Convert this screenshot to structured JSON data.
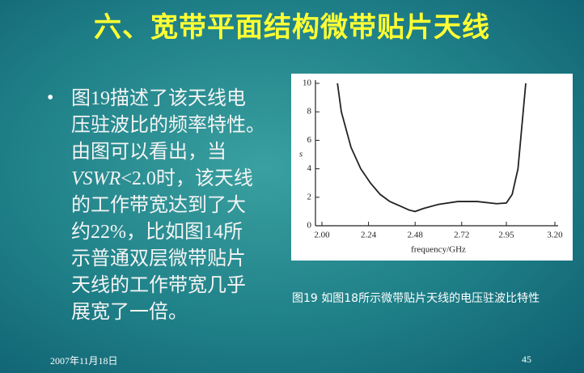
{
  "title": "六、宽带平面结构微带贴片天线",
  "bullet": {
    "lines": [
      "图19描述了该天线电",
      "压驻波比的频率特性。",
      "由图可以看出，当",
      {
        "em": "VSWR",
        "text": "<2.0时，该天线"
      },
      "的工作带宽达到了大",
      "约22%，比如图14所",
      "示普通双层微带贴片",
      "天线的工作带宽几乎",
      "展宽了一倍。"
    ]
  },
  "figure": {
    "caption": "图19 如图18所示微带贴片天线的电压驻波比特性",
    "chart": {
      "type": "line",
      "xlabel": "frequency/GHz",
      "ylabel": "s",
      "x": [
        2.08,
        2.1,
        2.15,
        2.2,
        2.25,
        2.3,
        2.35,
        2.4,
        2.45,
        2.48,
        2.52,
        2.6,
        2.7,
        2.8,
        2.9,
        2.95,
        2.98,
        3.01,
        3.03,
        3.05
      ],
      "values": [
        10,
        8,
        5.5,
        4,
        3,
        2.2,
        1.7,
        1.4,
        1.1,
        1,
        1.2,
        1.5,
        1.7,
        1.7,
        1.55,
        1.6,
        2.2,
        4,
        7,
        10
      ],
      "xlim": [
        2.0,
        3.2
      ],
      "ylim": [
        0,
        10
      ],
      "xticks": [
        {
          "value": 2,
          "label": "2.00"
        },
        2.24,
        2.48,
        2.72,
        2.95,
        {
          "value": 3.2,
          "label": "3.20"
        }
      ],
      "yticks": [
        0,
        2,
        4,
        6,
        8,
        10
      ],
      "color": "#222222"
    }
  },
  "footer": {
    "date": "2007年11月18日",
    "page": "45"
  }
}
